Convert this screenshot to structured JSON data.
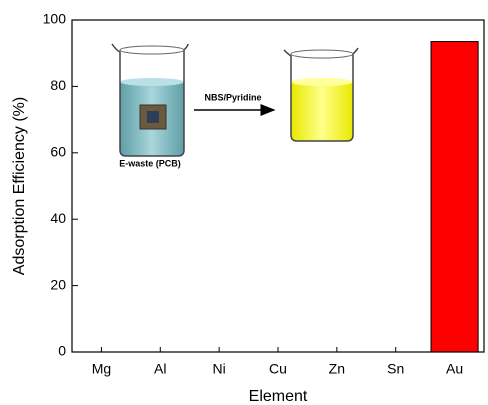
{
  "chart_data": {
    "type": "bar",
    "x_label": "Element",
    "y_label": "Adsorption Efficiency (%)",
    "annotations": [
      "NBS/Pyridine",
      "E-waste (PCB)"
    ],
    "categories": [
      "Mg",
      "Al",
      "Ni",
      "Cu",
      "Zn",
      "Sn",
      "Au"
    ],
    "values": [
      0,
      0,
      0,
      0,
      0,
      0,
      93.5
    ],
    "color": "#ff0000",
    "ylim": [
      0,
      100
    ],
    "yticks": [
      0,
      20,
      40,
      60,
      80,
      100
    ]
  }
}
